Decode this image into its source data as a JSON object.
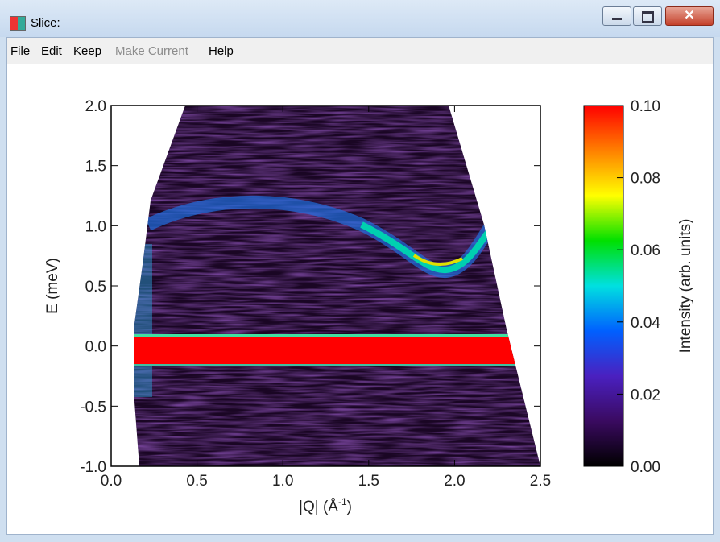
{
  "window": {
    "title": "Slice:"
  },
  "menu": [
    "File",
    "Edit",
    "Keep",
    "Make Current",
    "Help"
  ],
  "chart_data": {
    "type": "heatmap",
    "xlabel": [
      "|Q| (Å",
      "-1",
      ")"
    ],
    "ylabel": "E (meV)",
    "xlim": [
      0,
      2.5
    ],
    "ylim": [
      -1,
      2
    ],
    "xticks": [
      {
        "value": 0,
        "label": "0.0"
      },
      {
        "value": 0.5,
        "label": "0.5"
      },
      {
        "value": 1,
        "label": "1.0"
      },
      {
        "value": 1.5,
        "label": "1.5"
      },
      {
        "value": 2,
        "label": "2.0"
      },
      {
        "value": 2.5,
        "label": "2.5"
      }
    ],
    "yticks": [
      {
        "value": -1,
        "label": "-1.0"
      },
      {
        "value": -0.5,
        "label": "-0.5"
      },
      {
        "value": 0,
        "label": "0.0"
      },
      {
        "value": 0.5,
        "label": "0.5"
      },
      {
        "value": 1,
        "label": "1.0"
      },
      {
        "value": 1.5,
        "label": "1.5"
      },
      {
        "value": 2,
        "label": "2.0"
      }
    ],
    "colorbar": {
      "label": "Intensity (arb. units)",
      "lim": [
        0,
        0.1
      ],
      "ticks": [
        {
          "value": 0,
          "label": "0.00"
        },
        {
          "value": 0.02,
          "label": "0.02"
        },
        {
          "value": 0.04,
          "label": "0.04"
        },
        {
          "value": 0.06,
          "label": "0.06"
        },
        {
          "value": 0.08,
          "label": "0.08"
        },
        {
          "value": 0.1,
          "label": "0.10"
        }
      ],
      "colors": [
        "#000000",
        "#3a0a60",
        "#4a20c0",
        "#0060ff",
        "#00e0e0",
        "#00e000",
        "#ffff00",
        "#ff8000",
        "#ff0000"
      ]
    }
  }
}
